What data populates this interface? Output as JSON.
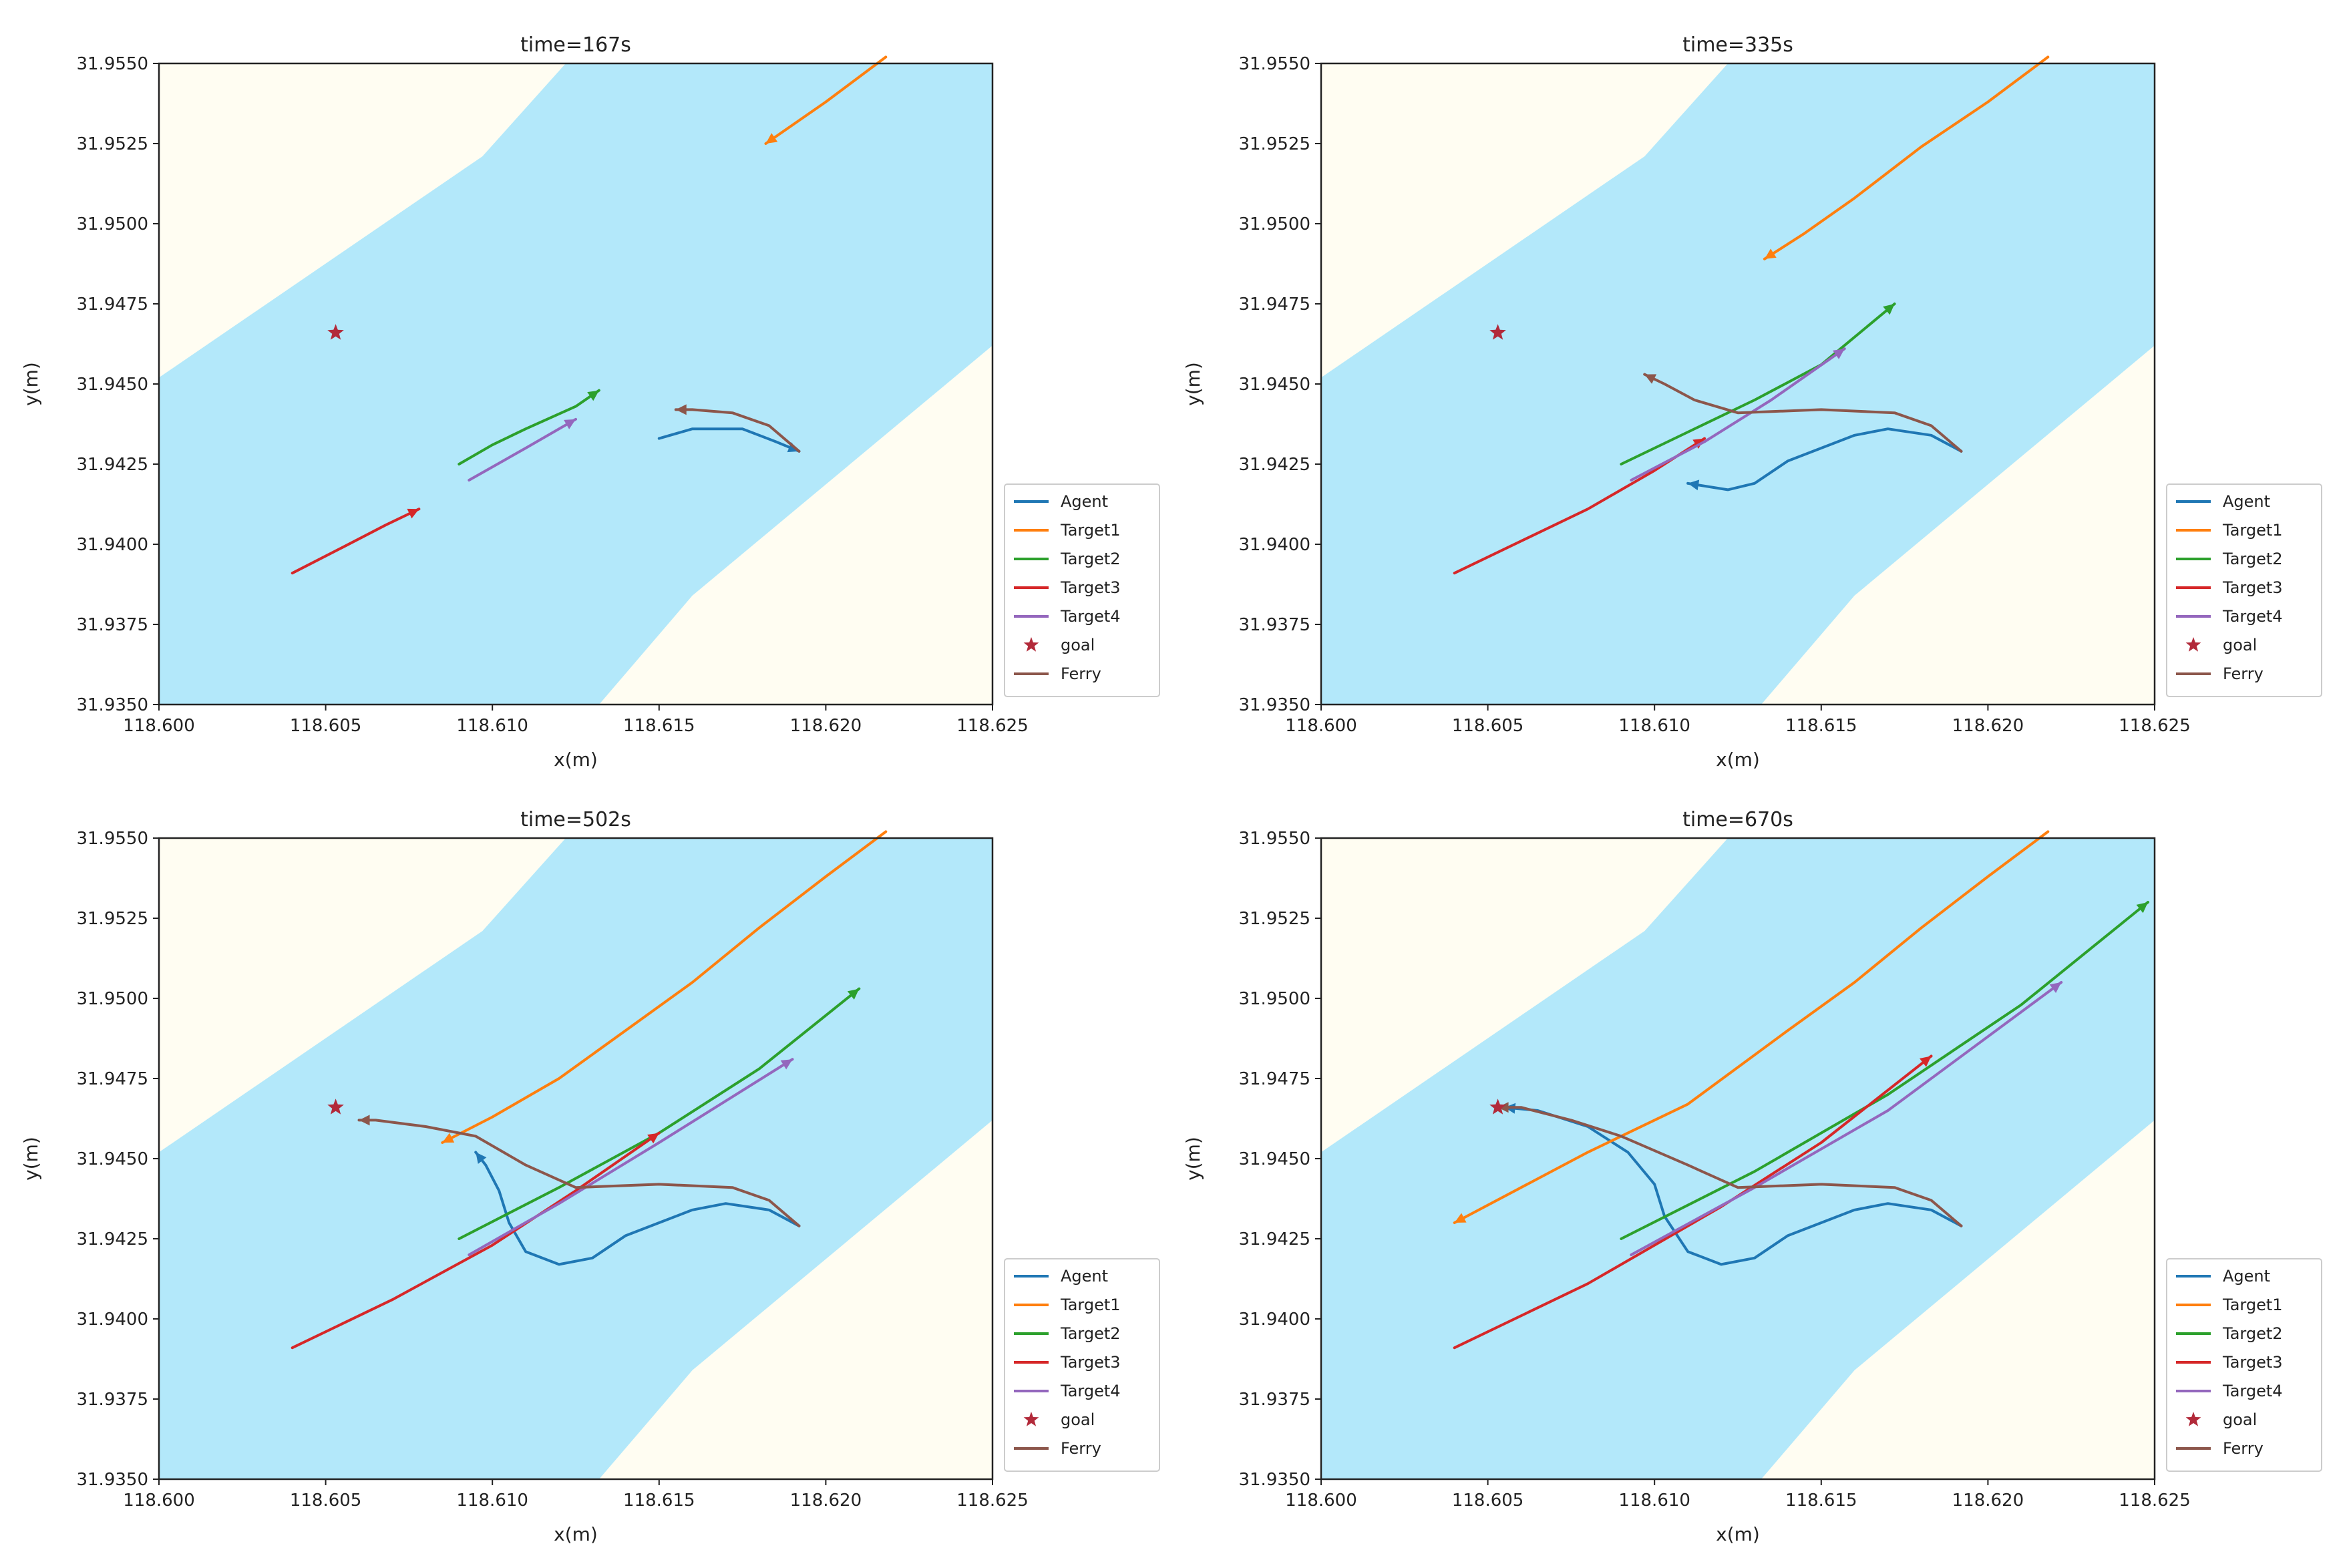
{
  "colors": {
    "water": "#b3e8fa",
    "land": "#fffdf2",
    "Agent": "#1f77b4",
    "Target1": "#ff7f0e",
    "Target2": "#2ca02c",
    "Target3": "#d62728",
    "Target4": "#9467bd",
    "goal": "#b22a3a",
    "Ferry": "#8c564b"
  },
  "chart_data": [
    {
      "type": "line",
      "title": "time=167s",
      "xlabel": "x(m)",
      "ylabel": "y(m)",
      "xlim": [
        118.6,
        118.625
      ],
      "ylim": [
        31.935,
        31.955
      ],
      "xticks": [
        "118.600",
        "118.605",
        "118.610",
        "118.615",
        "118.620",
        "118.625"
      ],
      "yticks": [
        "31.9350",
        "31.9375",
        "31.9400",
        "31.9425",
        "31.9450",
        "31.9475",
        "31.9500",
        "31.9525",
        "31.9550"
      ],
      "goal": [
        118.6053,
        31.9466
      ],
      "legend": [
        "Agent",
        "Target1",
        "Target2",
        "Target3",
        "Target4",
        "goal",
        "Ferry"
      ],
      "series": [
        {
          "name": "Agent",
          "points": [
            [
              118.615,
              31.9433
            ],
            [
              118.616,
              31.9436
            ],
            [
              118.6175,
              31.9436
            ],
            [
              118.6185,
              31.9432
            ],
            [
              118.6192,
              31.9429
            ]
          ]
        },
        {
          "name": "Target1",
          "points": [
            [
              118.6218,
              31.9552
            ],
            [
              118.62,
              31.9538
            ],
            [
              118.6182,
              31.9525
            ]
          ]
        },
        {
          "name": "Target2",
          "points": [
            [
              118.609,
              31.9425
            ],
            [
              118.61,
              31.9431
            ],
            [
              118.611,
              31.9436
            ],
            [
              118.6125,
              31.9443
            ],
            [
              118.6132,
              31.9448
            ]
          ]
        },
        {
          "name": "Target3",
          "points": [
            [
              118.604,
              31.9391
            ],
            [
              118.6055,
              31.9399
            ],
            [
              118.6068,
              31.9406
            ],
            [
              118.6078,
              31.9411
            ]
          ]
        },
        {
          "name": "Target4",
          "points": [
            [
              118.6093,
              31.942
            ],
            [
              118.611,
              31.943
            ],
            [
              118.6125,
              31.9439
            ]
          ]
        },
        {
          "name": "Ferry",
          "points": [
            [
              118.6192,
              31.9429
            ],
            [
              118.6183,
              31.9437
            ],
            [
              118.6172,
              31.9441
            ],
            [
              118.616,
              31.9442
            ],
            [
              118.6155,
              31.9442
            ]
          ]
        }
      ]
    },
    {
      "type": "line",
      "title": "time=335s",
      "xlabel": "x(m)",
      "ylabel": "y(m)",
      "xlim": [
        118.6,
        118.625
      ],
      "ylim": [
        31.935,
        31.955
      ],
      "xticks": [
        "118.600",
        "118.605",
        "118.610",
        "118.615",
        "118.620",
        "118.625"
      ],
      "yticks": [
        "31.9350",
        "31.9375",
        "31.9400",
        "31.9425",
        "31.9450",
        "31.9475",
        "31.9500",
        "31.9525",
        "31.9550"
      ],
      "goal": [
        118.6053,
        31.9466
      ],
      "legend": [
        "Agent",
        "Target1",
        "Target2",
        "Target3",
        "Target4",
        "goal",
        "Ferry"
      ],
      "series": [
        {
          "name": "Agent",
          "points": [
            [
              118.6192,
              31.9429
            ],
            [
              118.6183,
              31.9434
            ],
            [
              118.617,
              31.9436
            ],
            [
              118.616,
              31.9434
            ],
            [
              118.615,
              31.943
            ],
            [
              118.614,
              31.9426
            ],
            [
              118.613,
              31.9419
            ],
            [
              118.6122,
              31.9417
            ],
            [
              118.611,
              31.9419
            ]
          ]
        },
        {
          "name": "Target1",
          "points": [
            [
              118.6218,
              31.9552
            ],
            [
              118.62,
              31.9538
            ],
            [
              118.618,
              31.9524
            ],
            [
              118.616,
              31.9508
            ],
            [
              118.6145,
              31.9497
            ],
            [
              118.6133,
              31.9489
            ]
          ]
        },
        {
          "name": "Target2",
          "points": [
            [
              118.609,
              31.9425
            ],
            [
              118.611,
              31.9435
            ],
            [
              118.613,
              31.9445
            ],
            [
              118.615,
              31.9456
            ],
            [
              118.6172,
              31.9475
            ]
          ]
        },
        {
          "name": "Target3",
          "points": [
            [
              118.604,
              31.9391
            ],
            [
              118.606,
              31.9401
            ],
            [
              118.608,
              31.9411
            ],
            [
              118.61,
              31.9423
            ],
            [
              118.6115,
              31.9433
            ]
          ]
        },
        {
          "name": "Target4",
          "points": [
            [
              118.6093,
              31.942
            ],
            [
              118.6115,
              31.9432
            ],
            [
              118.6135,
              31.9445
            ],
            [
              118.6157,
              31.9461
            ]
          ]
        },
        {
          "name": "Ferry",
          "points": [
            [
              118.6192,
              31.9429
            ],
            [
              118.6183,
              31.9437
            ],
            [
              118.6172,
              31.9441
            ],
            [
              118.615,
              31.9442
            ],
            [
              118.6125,
              31.9441
            ],
            [
              118.6112,
              31.9445
            ],
            [
              118.6103,
              31.945
            ],
            [
              118.6097,
              31.9453
            ]
          ]
        }
      ]
    },
    {
      "type": "line",
      "title": "time=502s",
      "xlabel": "x(m)",
      "ylabel": "y(m)",
      "xlim": [
        118.6,
        118.625
      ],
      "ylim": [
        31.935,
        31.955
      ],
      "xticks": [
        "118.600",
        "118.605",
        "118.610",
        "118.615",
        "118.620",
        "118.625"
      ],
      "yticks": [
        "31.9350",
        "31.9375",
        "31.9400",
        "31.9425",
        "31.9450",
        "31.9475",
        "31.9500",
        "31.9525",
        "31.9550"
      ],
      "goal": [
        118.6053,
        31.9466
      ],
      "legend": [
        "Agent",
        "Target1",
        "Target2",
        "Target3",
        "Target4",
        "goal",
        "Ferry"
      ],
      "series": [
        {
          "name": "Agent",
          "points": [
            [
              118.6192,
              31.9429
            ],
            [
              118.6183,
              31.9434
            ],
            [
              118.617,
              31.9436
            ],
            [
              118.616,
              31.9434
            ],
            [
              118.615,
              31.943
            ],
            [
              118.614,
              31.9426
            ],
            [
              118.613,
              31.9419
            ],
            [
              118.612,
              31.9417
            ],
            [
              118.611,
              31.9421
            ],
            [
              118.6105,
              31.943
            ],
            [
              118.6102,
              31.944
            ],
            [
              118.6098,
              31.9448
            ],
            [
              118.6095,
              31.9452
            ]
          ]
        },
        {
          "name": "Target1",
          "points": [
            [
              118.6218,
              31.9552
            ],
            [
              118.62,
              31.9538
            ],
            [
              118.618,
              31.9522
            ],
            [
              118.616,
              31.9505
            ],
            [
              118.614,
              31.949
            ],
            [
              118.612,
              31.9475
            ],
            [
              118.61,
              31.9463
            ],
            [
              118.6085,
              31.9455
            ]
          ]
        },
        {
          "name": "Target2",
          "points": [
            [
              118.609,
              31.9425
            ],
            [
              118.612,
              31.9441
            ],
            [
              118.615,
              31.9458
            ],
            [
              118.618,
              31.9478
            ],
            [
              118.621,
              31.9503
            ]
          ]
        },
        {
          "name": "Target3",
          "points": [
            [
              118.604,
              31.9391
            ],
            [
              118.607,
              31.9406
            ],
            [
              118.61,
              31.9423
            ],
            [
              118.6125,
              31.944
            ],
            [
              118.615,
              31.9458
            ]
          ]
        },
        {
          "name": "Target4",
          "points": [
            [
              118.6093,
              31.942
            ],
            [
              118.612,
              31.9436
            ],
            [
              118.615,
              31.9455
            ],
            [
              118.619,
              31.9481
            ]
          ]
        },
        {
          "name": "Ferry",
          "points": [
            [
              118.6192,
              31.9429
            ],
            [
              118.6183,
              31.9437
            ],
            [
              118.6172,
              31.9441
            ],
            [
              118.615,
              31.9442
            ],
            [
              118.6125,
              31.9441
            ],
            [
              118.611,
              31.9448
            ],
            [
              118.6095,
              31.9457
            ],
            [
              118.608,
              31.946
            ],
            [
              118.6065,
              31.9462
            ],
            [
              118.606,
              31.9462
            ]
          ]
        }
      ]
    },
    {
      "type": "line",
      "title": "time=670s",
      "xlabel": "x(m)",
      "ylabel": "y(m)",
      "xlim": [
        118.6,
        118.625
      ],
      "ylim": [
        31.935,
        31.955
      ],
      "xticks": [
        "118.600",
        "118.605",
        "118.610",
        "118.615",
        "118.620",
        "118.625"
      ],
      "yticks": [
        "31.9350",
        "31.9375",
        "31.9400",
        "31.9425",
        "31.9450",
        "31.9475",
        "31.9500",
        "31.9525",
        "31.9550"
      ],
      "goal": [
        118.6053,
        31.9466
      ],
      "legend": [
        "Agent",
        "Target1",
        "Target2",
        "Target3",
        "Target4",
        "goal",
        "Ferry"
      ],
      "series": [
        {
          "name": "Agent",
          "points": [
            [
              118.6192,
              31.9429
            ],
            [
              118.6183,
              31.9434
            ],
            [
              118.617,
              31.9436
            ],
            [
              118.616,
              31.9434
            ],
            [
              118.615,
              31.943
            ],
            [
              118.614,
              31.9426
            ],
            [
              118.613,
              31.9419
            ],
            [
              118.612,
              31.9417
            ],
            [
              118.611,
              31.9421
            ],
            [
              118.6103,
              31.9432
            ],
            [
              118.61,
              31.9442
            ],
            [
              118.6092,
              31.9452
            ],
            [
              118.608,
              31.946
            ],
            [
              118.6065,
              31.9465
            ],
            [
              118.6055,
              31.9466
            ]
          ]
        },
        {
          "name": "Target1",
          "points": [
            [
              118.6218,
              31.9552
            ],
            [
              118.62,
              31.9538
            ],
            [
              118.618,
              31.9522
            ],
            [
              118.616,
              31.9505
            ],
            [
              118.614,
              31.949
            ],
            [
              118.611,
              31.9467
            ],
            [
              118.608,
              31.9452
            ],
            [
              118.606,
              31.9441
            ],
            [
              118.604,
              31.943
            ]
          ]
        },
        {
          "name": "Target2",
          "points": [
            [
              118.609,
              31.9425
            ],
            [
              118.613,
              31.9446
            ],
            [
              118.617,
              31.947
            ],
            [
              118.621,
              31.9498
            ],
            [
              118.6248,
              31.953
            ]
          ]
        },
        {
          "name": "Target3",
          "points": [
            [
              118.604,
              31.9391
            ],
            [
              118.608,
              31.9411
            ],
            [
              118.612,
              31.9435
            ],
            [
              118.615,
              31.9455
            ],
            [
              118.6183,
              31.9482
            ]
          ]
        },
        {
          "name": "Target4",
          "points": [
            [
              118.6093,
              31.942
            ],
            [
              118.613,
              31.9441
            ],
            [
              118.617,
              31.9465
            ],
            [
              118.6222,
              31.9505
            ]
          ]
        },
        {
          "name": "Ferry",
          "points": [
            [
              118.6192,
              31.9429
            ],
            [
              118.6183,
              31.9437
            ],
            [
              118.6172,
              31.9441
            ],
            [
              118.615,
              31.9442
            ],
            [
              118.6125,
              31.9441
            ],
            [
              118.611,
              31.9448
            ],
            [
              118.609,
              31.9457
            ],
            [
              118.6075,
              31.9462
            ],
            [
              118.606,
              31.9466
            ],
            [
              118.6053,
              31.9466
            ]
          ]
        }
      ]
    }
  ]
}
